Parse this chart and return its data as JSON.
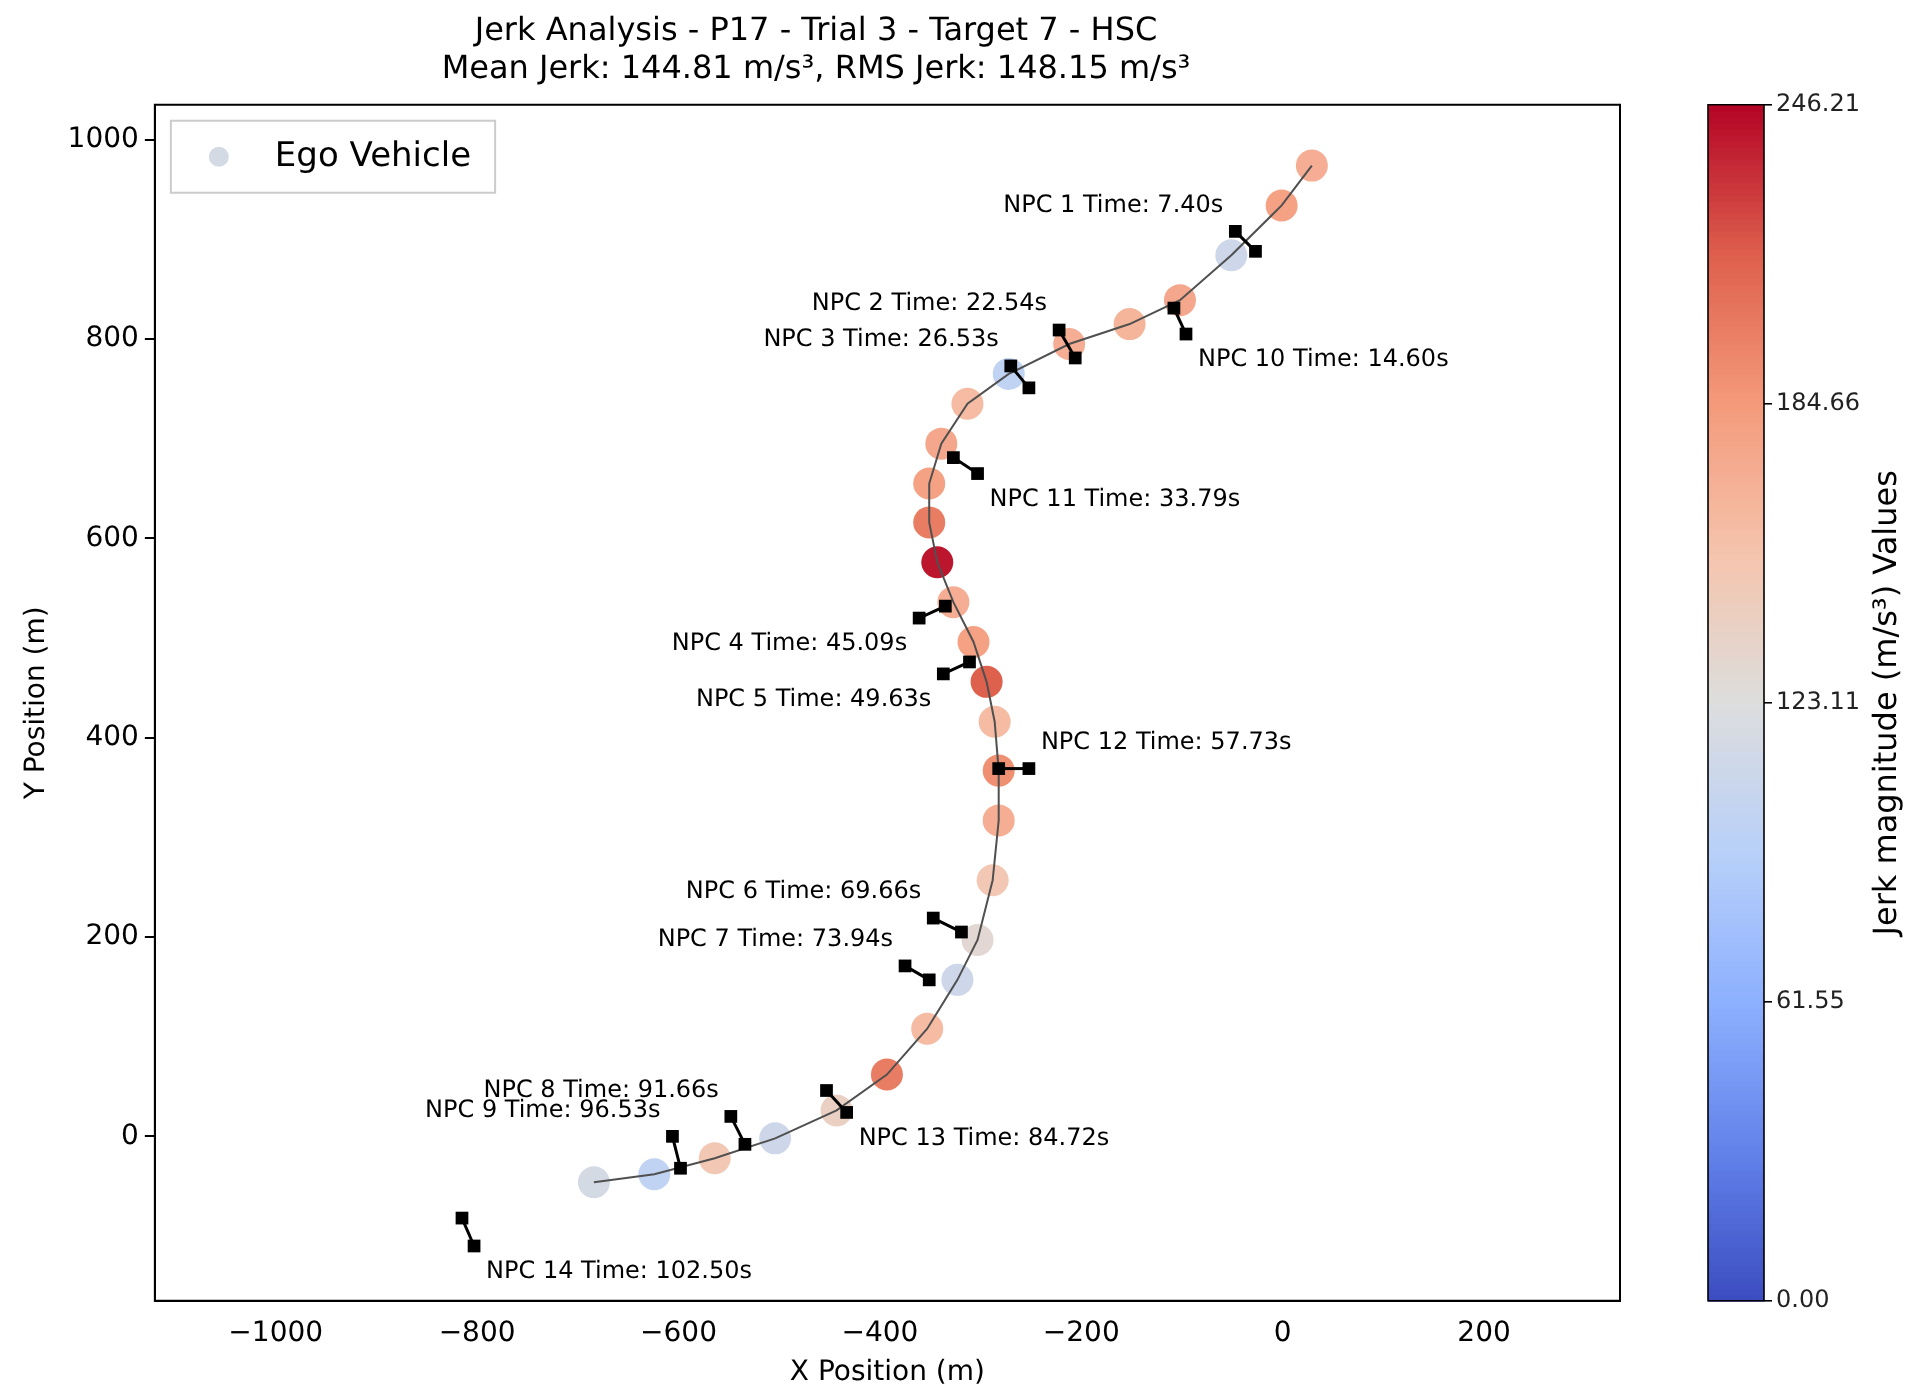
{
  "chart_data": {
    "type": "scatter",
    "title": "Jerk Analysis - P17 - Trial 3 - Target 7 - HSC",
    "subtitle": "Mean Jerk: 144.81 m/s³, RMS Jerk: 148.15 m/s³",
    "xlabel": "X Position (m)",
    "ylabel": "Y Position (m)",
    "clabel": "Jerk magnitude (m/s³) Values",
    "clim": [
      0,
      246.21
    ],
    "cticks": [
      {
        "value": 0,
        "label": "0.00"
      },
      61.55,
      123.11,
      184.66,
      246.21
    ],
    "xlim": [
      -1120,
      335
    ],
    "ylim": [
      -165,
      1035
    ],
    "xticks": [
      {
        "value": -1000,
        "label": "−1000"
      },
      {
        "value": -800,
        "label": "−800"
      },
      {
        "value": -600,
        "label": "−600"
      },
      {
        "value": -400,
        "label": "−400"
      },
      {
        "value": -200,
        "label": "−200"
      },
      0,
      200
    ],
    "yticks": [
      0,
      200,
      400,
      600,
      800,
      1000
    ],
    "grid": false,
    "legend": "top left",
    "series": [
      {
        "name": "Ego Vehicle",
        "type": "scatter",
        "marker": "circle",
        "x": [
          -684,
          -624,
          -564,
          -504,
          -443,
          -393,
          -353,
          -323,
          -303,
          -288,
          -282,
          -282,
          -286,
          -294,
          -307,
          -327,
          -343,
          -351,
          -351,
          -339,
          -313,
          -272,
          -212,
          -152,
          -102,
          -51,
          -1,
          29
        ],
        "values": [
          -46,
          -38,
          -22,
          -2,
          26,
          62,
          108,
          157,
          197,
          257,
          317,
          367,
          416,
          456,
          496,
          536,
          576,
          616,
          655,
          695,
          735,
          765,
          795,
          815,
          839,
          884,
          934,
          974
        ],
        "colors": [
          "#d3dae4",
          "#c1d3f2",
          "#f2c7b3",
          "#cdd7e9",
          "#eacfc3",
          "#e97d64",
          "#f5bca3",
          "#cdd7e9",
          "#e2d7d2",
          "#f2c7b3",
          "#f5ae93",
          "#f09073",
          "#f5bca3",
          "#de614e",
          "#f4a184",
          "#f5ae93",
          "#bc162e",
          "#e97d64",
          "#f4a184",
          "#f4a78c",
          "#f5bca3",
          "#c1d3f2",
          "#f5ae93",
          "#f5b59b",
          "#f4a78c",
          "#cdd7e9",
          "#f4a184",
          "#f5ae93"
        ]
      },
      {
        "type": "line",
        "color": "#505050",
        "marker": "none",
        "x": [
          -684,
          -624,
          -564,
          -504,
          -443,
          -393,
          -353,
          -323,
          -303,
          -288,
          -282,
          -282,
          -286,
          -294,
          -307,
          -327,
          -343,
          -351,
          -351,
          -339,
          -313,
          -272,
          -212,
          -152,
          -102,
          -51,
          -1,
          29
        ],
        "values": [
          -46,
          -38,
          -22,
          -2,
          26,
          62,
          108,
          157,
          197,
          257,
          317,
          367,
          416,
          456,
          496,
          536,
          576,
          616,
          655,
          695,
          735,
          765,
          795,
          815,
          839,
          884,
          934,
          974
        ]
      },
      {
        "type": "line",
        "color": "#000000",
        "marker": "square",
        "x": [
          -47,
          -27
        ],
        "values": [
          908,
          888
        ]
      },
      {
        "type": "line",
        "color": "#000000",
        "marker": "square",
        "x": [
          -222,
          -206
        ],
        "values": [
          809,
          781
        ]
      },
      {
        "type": "line",
        "color": "#000000",
        "marker": "square",
        "x": [
          -270,
          -252
        ],
        "values": [
          773,
          751
        ]
      },
      {
        "type": "line",
        "color": "#000000",
        "marker": "square",
        "x": [
          -335,
          -361
        ],
        "values": [
          532,
          520
        ]
      },
      {
        "type": "line",
        "color": "#000000",
        "marker": "square",
        "x": [
          -311,
          -337
        ],
        "values": [
          476,
          464
        ]
      },
      {
        "type": "line",
        "color": "#000000",
        "marker": "square",
        "x": [
          -347,
          -319
        ],
        "values": [
          219,
          205
        ]
      },
      {
        "type": "line",
        "color": "#000000",
        "marker": "square",
        "x": [
          -375,
          -351
        ],
        "values": [
          171,
          157
        ]
      },
      {
        "type": "line",
        "color": "#000000",
        "marker": "square",
        "x": [
          -548,
          -534
        ],
        "values": [
          20,
          -8
        ]
      },
      {
        "type": "line",
        "color": "#000000",
        "marker": "square",
        "x": [
          -606,
          -598
        ],
        "values": [
          0,
          -32
        ]
      },
      {
        "type": "line",
        "color": "#000000",
        "marker": "square",
        "x": [
          -108,
          -96
        ],
        "values": [
          831,
          805
        ]
      },
      {
        "type": "line",
        "color": "#000000",
        "marker": "square",
        "x": [
          -327,
          -303
        ],
        "values": [
          681,
          665
        ]
      },
      {
        "type": "line",
        "color": "#000000",
        "marker": "square",
        "x": [
          -282,
          -252
        ],
        "values": [
          369,
          369
        ]
      },
      {
        "type": "line",
        "color": "#000000",
        "marker": "square",
        "x": [
          -453,
          -433
        ],
        "values": [
          46,
          24
        ]
      },
      {
        "type": "line",
        "color": "#000000",
        "marker": "square",
        "x": [
          -815,
          -803
        ],
        "values": [
          -82,
          -110
        ]
      }
    ],
    "annotations": [
      {
        "text": "NPC 1 Time: 7.40s",
        "x": -47,
        "y": 908
      },
      {
        "text": "NPC 2 Time: 22.54s",
        "x": -222,
        "y": 809
      },
      {
        "text": "NPC 3 Time: 26.53s",
        "x": -270,
        "y": 773
      },
      {
        "text": "NPC 4 Time: 45.09s",
        "x": -361,
        "y": 520
      },
      {
        "text": "NPC 5 Time: 49.63s",
        "x": -337,
        "y": 464
      },
      {
        "text": "NPC 6 Time: 69.66s",
        "x": -347,
        "y": 219
      },
      {
        "text": "NPC 7 Time: 73.94s",
        "x": -375,
        "y": 171
      },
      {
        "text": "NPC 8 Time: 91.66s",
        "x": -548,
        "y": 20
      },
      {
        "text": "NPC 9 Time: 96.53s",
        "x": -606,
        "y": 0
      },
      {
        "text": "NPC 10 Time: 14.60s",
        "x": -96,
        "y": 805
      },
      {
        "text": "NPC 11 Time: 33.79s",
        "x": -303,
        "y": 665
      },
      {
        "text": "NPC 12 Time: 57.73s",
        "x": -252,
        "y": 369
      },
      {
        "text": "NPC 13 Time: 84.72s",
        "x": -433,
        "y": 24
      },
      {
        "text": "NPC 14 Time: 102.50s",
        "x": -803,
        "y": -110
      }
    ]
  }
}
